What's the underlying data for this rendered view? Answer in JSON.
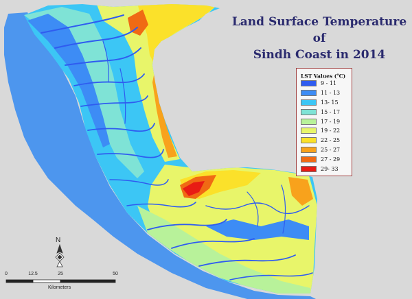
{
  "title": {
    "line1": "Land Surface Temperature",
    "line2": "of",
    "line3": "Sindh Coast in 2014"
  },
  "legend": {
    "title_main": "LST Values (",
    "title_sup": "o",
    "title_end": "C)",
    "classes": [
      {
        "label": "9 - 11",
        "color": "#2f5cf0"
      },
      {
        "label": "11 - 13",
        "color": "#3d8cf5"
      },
      {
        "label": "13- 15",
        "color": "#3cc6f5"
      },
      {
        "label": "15 - 17",
        "color": "#7fe3d6"
      },
      {
        "label": "17 - 19",
        "color": "#b8f29a"
      },
      {
        "label": "19 - 22",
        "color": "#e8f56a"
      },
      {
        "label": "22 - 25",
        "color": "#fbe12a"
      },
      {
        "label": "25 - 27",
        "color": "#f8a21c"
      },
      {
        "label": "27 - 29",
        "color": "#f06a14"
      },
      {
        "label": "29- 33",
        "color": "#e81c14"
      }
    ]
  },
  "north_arrow": {
    "label": "N"
  },
  "scale_bar": {
    "ticks": [
      "0",
      "12.5",
      "25",
      "50"
    ],
    "unit": "Kilometers"
  },
  "map": {
    "sea_color": "#4d96ee",
    "background_color": "#d9d9d9"
  }
}
